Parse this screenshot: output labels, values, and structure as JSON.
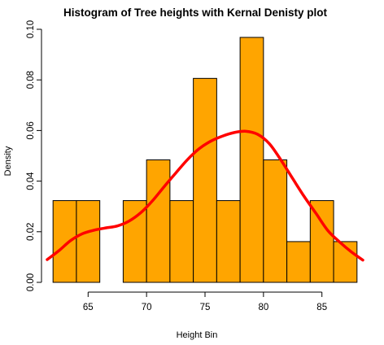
{
  "chart_data": {
    "type": "bar",
    "title": "Histogram of Tree heights with Kernal Denisty plot",
    "xlabel": "Height Bin",
    "ylabel": "Density",
    "x_ticks": [
      "65",
      "70",
      "75",
      "80",
      "85"
    ],
    "y_ticks": [
      "0.00",
      "0.02",
      "0.04",
      "0.06",
      "0.08",
      "0.10"
    ],
    "xlim": [
      61.5,
      88.5
    ],
    "ylim": [
      0,
      0.1
    ],
    "grid": false,
    "bar_color": "#FFA500",
    "curve_color": "#FF0000",
    "bins": [
      {
        "x0": 62,
        "x1": 64,
        "density": 0.0323
      },
      {
        "x0": 64,
        "x1": 66,
        "density": 0.0323
      },
      {
        "x0": 66,
        "x1": 68,
        "density": 0.0
      },
      {
        "x0": 68,
        "x1": 70,
        "density": 0.0323
      },
      {
        "x0": 70,
        "x1": 72,
        "density": 0.0484
      },
      {
        "x0": 72,
        "x1": 74,
        "density": 0.0323
      },
      {
        "x0": 74,
        "x1": 76,
        "density": 0.0806
      },
      {
        "x0": 76,
        "x1": 78,
        "density": 0.0323
      },
      {
        "x0": 78,
        "x1": 80,
        "density": 0.0968
      },
      {
        "x0": 80,
        "x1": 82,
        "density": 0.0484
      },
      {
        "x0": 82,
        "x1": 84,
        "density": 0.0161
      },
      {
        "x0": 84,
        "x1": 86,
        "density": 0.0323
      },
      {
        "x0": 86,
        "x1": 88,
        "density": 0.0161
      }
    ],
    "density_curve": {
      "x": [
        61.5,
        62.5,
        63.5,
        64.5,
        65.5,
        66.5,
        67.5,
        68.5,
        69.5,
        70.5,
        71.5,
        72.5,
        73.5,
        74.5,
        75.5,
        76.5,
        77.5,
        78.5,
        79.5,
        80.5,
        81.5,
        82.5,
        83.5,
        84.5,
        85.5,
        86.5,
        87.5,
        88.5
      ],
      "y": [
        0.009,
        0.0125,
        0.0165,
        0.0192,
        0.0206,
        0.0215,
        0.0223,
        0.0242,
        0.0275,
        0.0322,
        0.0378,
        0.0432,
        0.0485,
        0.0528,
        0.0558,
        0.0578,
        0.0592,
        0.0597,
        0.0585,
        0.0548,
        0.0483,
        0.041,
        0.0338,
        0.0272,
        0.0205,
        0.016,
        0.0121,
        0.0088
      ]
    }
  }
}
